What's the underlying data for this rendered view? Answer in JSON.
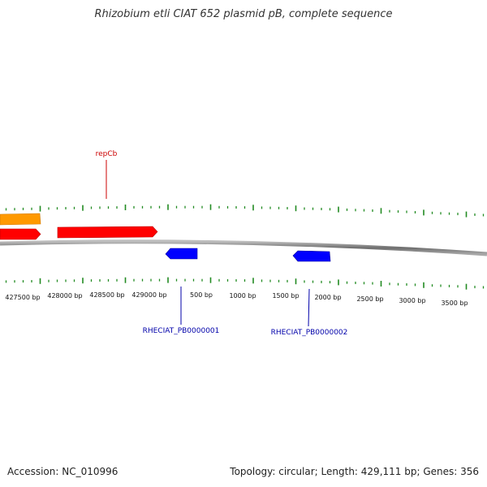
{
  "title": "Rhizobium etli CIAT 652 plasmid pB, complete sequence",
  "colors": {
    "forward_gene": "#ff0000",
    "forward_gene_alt": "#ff9900",
    "reverse_gene": "#0000ff",
    "ticks": "#228b22",
    "backbone": "#808080",
    "forward_label": "#cc0000",
    "reverse_label": "#0000aa"
  },
  "tick_labels": [
    "427500 bp",
    "428000 bp",
    "428500 bp",
    "429000 bp",
    "500 bp",
    "1000 bp",
    "1500 bp",
    "2000 bp",
    "2500 bp",
    "3000 bp",
    "3500 bp"
  ],
  "gene_labels": {
    "repCb": "repCb",
    "rheciat_1": "RHECIAT_PB0000001",
    "rheciat_2": "RHECIAT_PB0000002"
  },
  "footer": {
    "accession": "Accession: NC_010996",
    "summary": "Topology: circular; Length: 429,111 bp; Genes: 356"
  }
}
